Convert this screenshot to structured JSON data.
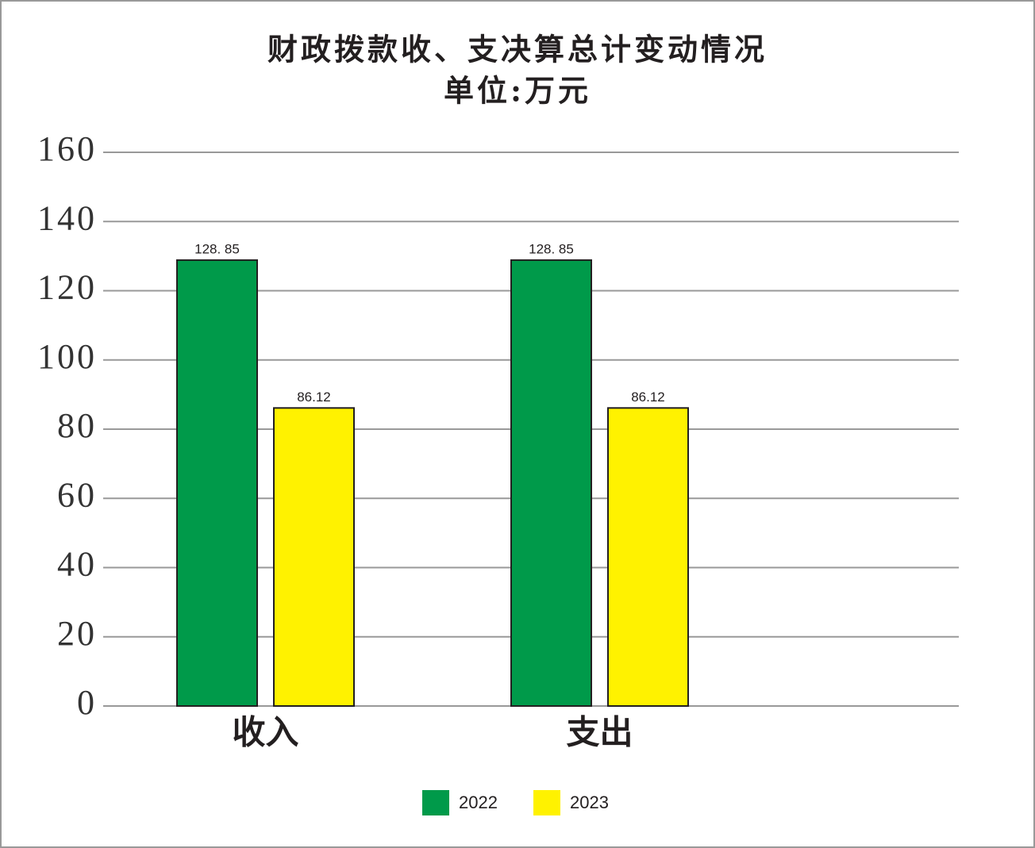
{
  "chart_data": {
    "type": "bar",
    "title": "财政拨款收、支决算总计变动情况",
    "subtitle": "单位:万元",
    "categories": [
      "收入",
      "支出"
    ],
    "series": [
      {
        "name": "2022",
        "color": "#009a4a",
        "values": [
          128.85,
          128.85
        ],
        "value_labels": [
          "128. 85",
          "128. 85"
        ]
      },
      {
        "name": "2023",
        "color": "#fff200",
        "values": [
          86.12,
          86.12
        ]
      }
    ],
    "ylim": [
      0,
      160
    ],
    "yticks": [
      0,
      20,
      40,
      60,
      80,
      100,
      120,
      140,
      160
    ],
    "grid": true,
    "legend": "bottom"
  }
}
